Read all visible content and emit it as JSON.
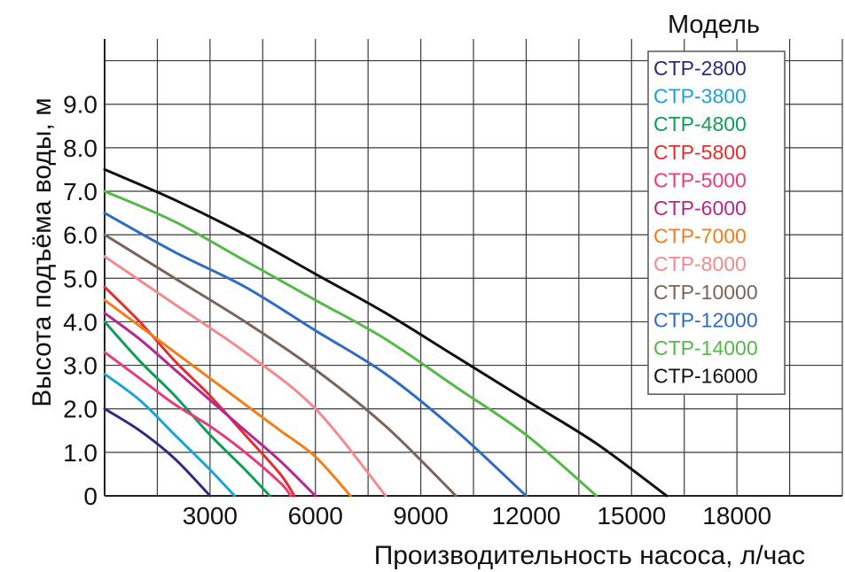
{
  "chart_data": {
    "type": "line",
    "title": "",
    "xlabel": "Производительность насоса, л/час",
    "ylabel": "Высота подъёма воды, м",
    "xlim": [
      0,
      21000
    ],
    "ylim": [
      0,
      10.5
    ],
    "x_tick_values": [
      3000,
      6000,
      9000,
      12000,
      15000,
      18000
    ],
    "x_tick_labels": [
      "3000",
      "6000",
      "9000",
      "12000",
      "15000",
      "18000"
    ],
    "y_tick_values": [
      0,
      1,
      2,
      3,
      4,
      5,
      6,
      7,
      8,
      9
    ],
    "y_tick_labels": [
      "0",
      "1.0",
      "2.0",
      "3.0",
      "4.0",
      "5.0",
      "6.0",
      "7.0",
      "8.0",
      "9.0"
    ],
    "grid": true,
    "legend_title": "Модель",
    "legend_position": "top-right",
    "series": [
      {
        "name": "CTP-2800",
        "color": "#2b2b7f",
        "x": [
          0,
          1000,
          2000,
          3000
        ],
        "y": [
          2.0,
          1.5,
          0.85,
          0
        ]
      },
      {
        "name": "CTP-3800",
        "color": "#1ba3d8",
        "x": [
          0,
          1000,
          2000,
          3000,
          3700
        ],
        "y": [
          2.8,
          2.2,
          1.4,
          0.6,
          0
        ]
      },
      {
        "name": "CTP-4800",
        "color": "#0f9d58",
        "x": [
          0,
          1000,
          2000,
          3000,
          4000,
          4700
        ],
        "y": [
          4.0,
          3.1,
          2.3,
          1.4,
          0.6,
          0
        ]
      },
      {
        "name": "CTP-5800",
        "color": "#e52d2d",
        "x": [
          0,
          1000,
          2000,
          3000,
          4000,
          5000,
          5400
        ],
        "y": [
          4.8,
          4.0,
          3.1,
          2.3,
          1.4,
          0.5,
          0
        ]
      },
      {
        "name": "CTP-5000",
        "color": "#e83b7a",
        "x": [
          0,
          1000,
          2000,
          3000,
          4000,
          5000,
          5300
        ],
        "y": [
          3.3,
          2.7,
          2.1,
          1.6,
          1.0,
          0.3,
          0
        ]
      },
      {
        "name": "CTP-6000",
        "color": "#b5278e",
        "x": [
          0,
          1000,
          2000,
          3000,
          4000,
          5000,
          6000
        ],
        "y": [
          4.2,
          3.6,
          2.9,
          2.2,
          1.5,
          0.8,
          0
        ]
      },
      {
        "name": "CTP-7000",
        "color": "#f07d16",
        "x": [
          0,
          1000,
          2000,
          3000,
          4000,
          5000,
          6000,
          7000
        ],
        "y": [
          4.5,
          3.9,
          3.3,
          2.7,
          2.1,
          1.5,
          0.9,
          0
        ]
      },
      {
        "name": "CTP-8000",
        "color": "#f28a8e",
        "x": [
          0,
          2000,
          4000,
          6000,
          8000
        ],
        "y": [
          5.5,
          4.4,
          3.3,
          2.0,
          0
        ]
      },
      {
        "name": "CTP-10000",
        "color": "#7a6558",
        "x": [
          0,
          2000,
          4000,
          6000,
          8000,
          10000
        ],
        "y": [
          6.0,
          5.0,
          4.0,
          2.9,
          1.6,
          0
        ]
      },
      {
        "name": "CTP-12000",
        "color": "#2f6bc1",
        "x": [
          0,
          2000,
          4000,
          6000,
          8000,
          10000,
          12000
        ],
        "y": [
          6.5,
          5.6,
          4.8,
          3.8,
          2.8,
          1.5,
          0
        ]
      },
      {
        "name": "CTP-14000",
        "color": "#55b848",
        "x": [
          0,
          2000,
          4000,
          6000,
          8000,
          10000,
          12000,
          14000
        ],
        "y": [
          7.0,
          6.3,
          5.4,
          4.5,
          3.6,
          2.5,
          1.4,
          0
        ]
      },
      {
        "name": "CTP-16000",
        "color": "#111111",
        "x": [
          0,
          2000,
          4000,
          6000,
          8000,
          10000,
          12000,
          14000,
          16000
        ],
        "y": [
          7.5,
          6.8,
          6.0,
          5.1,
          4.2,
          3.2,
          2.2,
          1.2,
          0
        ]
      }
    ]
  }
}
